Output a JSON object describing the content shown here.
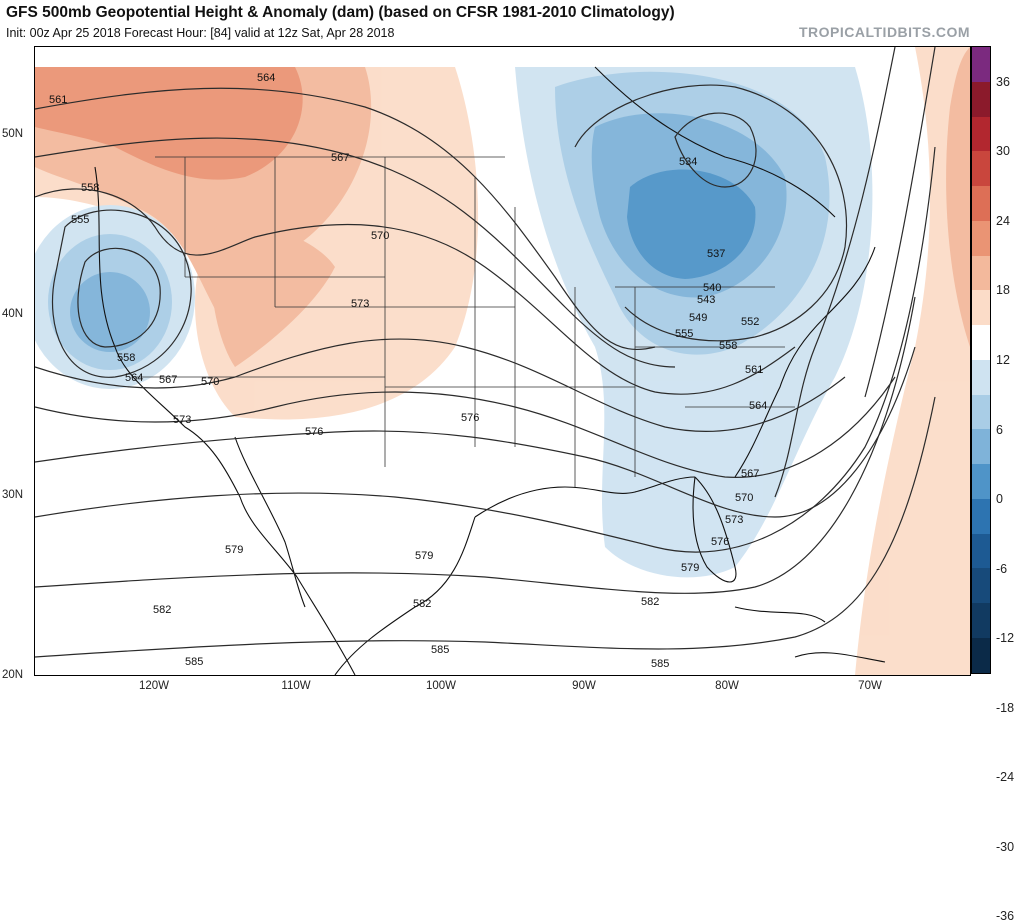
{
  "header": {
    "title": "GFS 500mb Geopotential Height & Anomaly (dam) (based on CFSR 1981-2010 Climatology)",
    "subtitle": "Init: 00z Apr 25 2018   Forecast Hour: [84]   valid at 12z Sat, Apr 28 2018",
    "brand": "TROPICALTIDBITS.COM"
  },
  "axes": {
    "lat_labels": [
      "50N",
      "40N",
      "30N",
      "20N"
    ],
    "lon_labels": [
      "120W",
      "110W",
      "100W",
      "90W",
      "80W",
      "70W"
    ]
  },
  "colorbar": {
    "labels": [
      "36",
      "30",
      "24",
      "18",
      "12",
      "6",
      "0",
      "-6",
      "-12",
      "-18",
      "-24",
      "-30",
      "-36"
    ],
    "colors": [
      "#7b2a7f",
      "#8b1a2b",
      "#b2272f",
      "#c9463d",
      "#dd6f56",
      "#ea9474",
      "#f3b99c",
      "#fbdcc8",
      "#ffffff",
      "#cfe3f1",
      "#a9cde6",
      "#7fb3d9",
      "#4f94c8",
      "#2d74b1",
      "#1d5a93",
      "#174a7a",
      "#113a61",
      "#0b2a48"
    ]
  },
  "contours": {
    "labels": [
      "561",
      "564",
      "567",
      "558",
      "555",
      "570",
      "573",
      "576",
      "558",
      "564",
      "567",
      "570",
      "573",
      "576",
      "579",
      "582",
      "585",
      "534",
      "537",
      "540",
      "543",
      "549",
      "552",
      "555",
      "558",
      "561",
      "564",
      "567",
      "570",
      "573",
      "576",
      "579",
      "579",
      "582",
      "582",
      "585",
      "585"
    ]
  }
}
